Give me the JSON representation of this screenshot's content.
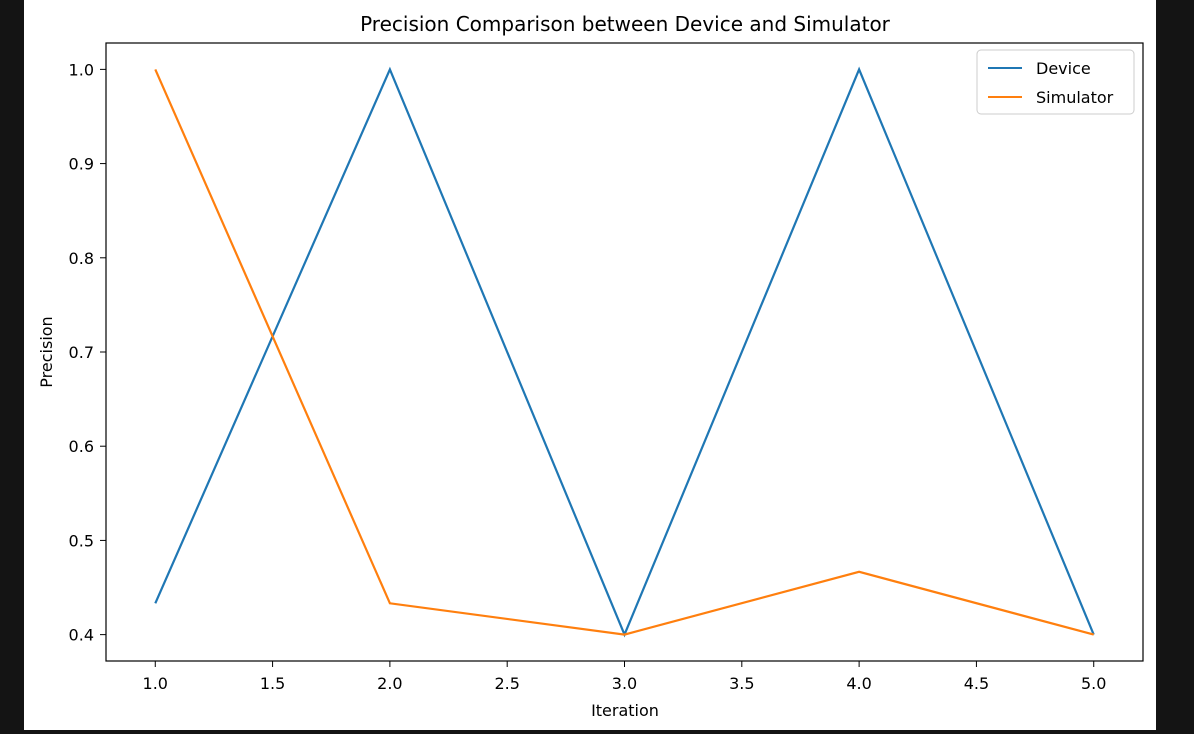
{
  "chart_data": {
    "type": "line",
    "title": "Precision Comparison between Device and Simulator",
    "xlabel": "Iteration",
    "ylabel": "Precision",
    "xlim": [
      0.79,
      5.21
    ],
    "ylim": [
      0.372,
      1.028
    ],
    "xticks": [
      "1.0",
      "1.5",
      "2.0",
      "2.5",
      "3.0",
      "3.5",
      "4.0",
      "4.5",
      "5.0"
    ],
    "yticks": [
      "0.4",
      "0.5",
      "0.6",
      "0.7",
      "0.8",
      "0.9",
      "1.0"
    ],
    "grid": false,
    "legend_position": "top-right",
    "x": [
      1.0,
      2.0,
      3.0,
      4.0,
      5.0
    ],
    "series": [
      {
        "name": "Device",
        "color": "#1f77b4",
        "values": [
          0.4333,
          1.0,
          0.4,
          1.0,
          0.4
        ]
      },
      {
        "name": "Simulator",
        "color": "#ff7f0e",
        "values": [
          1.0,
          0.4333,
          0.4,
          0.4667,
          0.4
        ]
      }
    ]
  }
}
